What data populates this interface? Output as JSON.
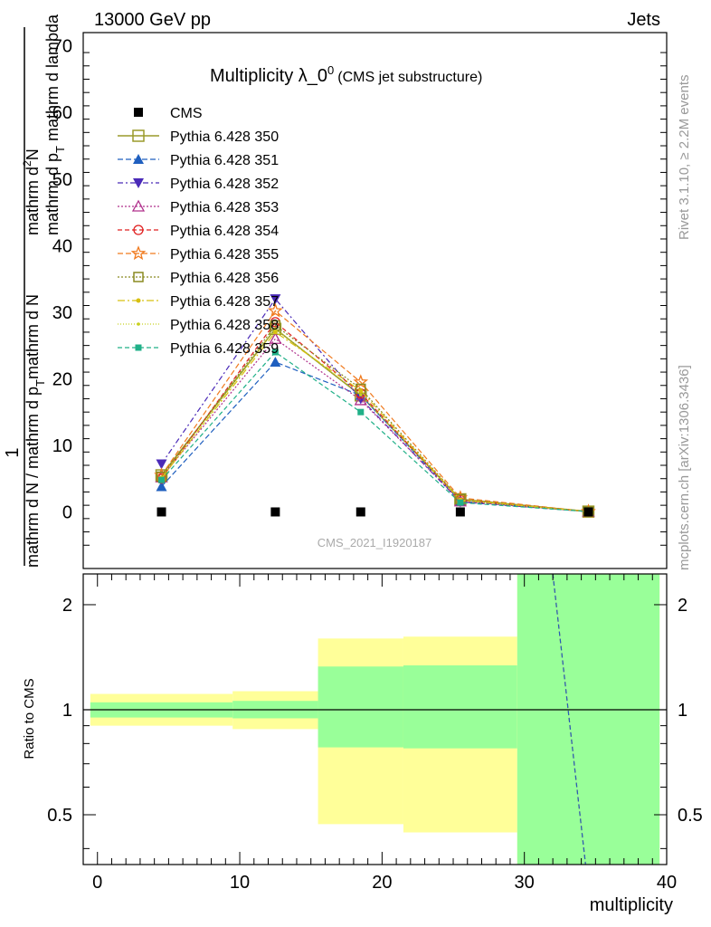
{
  "header": {
    "left": "13000 GeV pp",
    "right": "Jets"
  },
  "side_text": {
    "upper": "Rivet 3.1.10, ≥ 2.2M events",
    "lower": "mcplots.cern.ch [arXiv:1306.3436]"
  },
  "watermark": "CMS_2021_I1920187",
  "chart_data": [
    {
      "type": "line",
      "title": "Multiplicity λ_0",
      "title_sup": "0",
      "subtitle": "(CMS jet substructure)",
      "ylabel_numerator": "1",
      "ylabel_denominator_a": "mathrm d N / mathrm d p",
      "ylabel_denominator_sub": "T",
      "ylabel_denominator_b": "mathrm d N",
      "ylabel_main_a": "mathrm d",
      "ylabel_main_sup": "2",
      "ylabel_main_b": "N",
      "ylabel_lower_a": "mathrm d p",
      "ylabel_lower_sub": "T",
      "ylabel_lower_b": " mathrm d lambda",
      "xlim": [
        -1,
        40
      ],
      "ylim": [
        -8.5,
        72
      ],
      "yticks": [
        0,
        10,
        20,
        30,
        40,
        50,
        60,
        70
      ],
      "grid": false,
      "legend_position": "top-left",
      "x": [
        4.5,
        12.5,
        18.5,
        25.5,
        34.5
      ],
      "series": [
        {
          "name": "CMS",
          "color": "#000000",
          "dash": "none",
          "marker": "square-filled",
          "values": [
            0,
            0,
            0,
            0,
            0
          ],
          "line": false
        },
        {
          "name": "Pythia 6.428 350",
          "color": "#9a9a2a",
          "dash": "solid",
          "marker": "square-open-big",
          "values": [
            5.5,
            27.5,
            17.5,
            1.9,
            0.05
          ]
        },
        {
          "name": "Pythia 6.428 351",
          "color": "#1f5fbf",
          "dash": "6,3",
          "marker": "triangle-up-filled",
          "values": [
            3.8,
            22.5,
            17.5,
            1.6,
            0.05
          ]
        },
        {
          "name": "Pythia 6.428 352",
          "color": "#4a2ab8",
          "dash": "6,3,2,3",
          "marker": "triangle-down-filled",
          "values": [
            7.2,
            32.0,
            17.0,
            1.5,
            0.05
          ]
        },
        {
          "name": "Pythia 6.428 353",
          "color": "#b0308c",
          "dash": "2,2",
          "marker": "triangle-up-open",
          "values": [
            5.2,
            26.0,
            16.8,
            1.6,
            0.05
          ]
        },
        {
          "name": "Pythia 6.428 354",
          "color": "#e02020",
          "dash": "5,3",
          "marker": "circle-open",
          "values": [
            5.0,
            28.5,
            17.8,
            1.8,
            0.05
          ]
        },
        {
          "name": "Pythia 6.428 355",
          "color": "#f07a1e",
          "dash": "6,3",
          "marker": "star-open",
          "values": [
            5.5,
            30.2,
            19.5,
            2.1,
            0.05
          ]
        },
        {
          "name": "Pythia 6.428 356",
          "color": "#8a8a20",
          "dash": "2,2",
          "marker": "square-open",
          "values": [
            5.3,
            28.0,
            18.5,
            1.9,
            0.05
          ]
        },
        {
          "name": "Pythia 6.428 357",
          "color": "#d8c010",
          "dash": "8,3,2,3",
          "marker": "dot",
          "values": [
            5.1,
            27.0,
            18.2,
            1.8,
            0.05
          ]
        },
        {
          "name": "Pythia 6.428 358",
          "color": "#c8d020",
          "dash": "1,2",
          "marker": "dot-small",
          "values": [
            5.0,
            27.5,
            17.6,
            1.7,
            0.05
          ]
        },
        {
          "name": "Pythia 6.428 359",
          "color": "#20b088",
          "dash": "5,3",
          "marker": "square-small",
          "values": [
            4.8,
            24.0,
            15.0,
            1.4,
            0.05
          ]
        }
      ]
    },
    {
      "type": "line",
      "ylabel": "Ratio to CMS",
      "xlabel": "multiplicity",
      "xlim": [
        -1,
        40
      ],
      "xticks": [
        0,
        10,
        20,
        30,
        40
      ],
      "yticks": [
        0.5,
        1,
        2
      ],
      "ylim": [
        0.36,
        2.45
      ],
      "log_y": true,
      "bands": [
        {
          "x0": -0.5,
          "x1": 9.5,
          "green_lo": 0.95,
          "green_hi": 1.05,
          "yellow_lo": 0.9,
          "yellow_hi": 1.11
        },
        {
          "x0": 9.5,
          "x1": 15.5,
          "green_lo": 0.945,
          "green_hi": 1.06,
          "yellow_lo": 0.88,
          "yellow_hi": 1.13
        },
        {
          "x0": 15.5,
          "x1": 21.5,
          "green_lo": 0.78,
          "green_hi": 1.33,
          "yellow_lo": 0.47,
          "yellow_hi": 1.6
        },
        {
          "x0": 21.5,
          "x1": 29.5,
          "green_lo": 0.775,
          "green_hi": 1.34,
          "yellow_lo": 0.445,
          "yellow_hi": 1.62
        },
        {
          "x0": 29.5,
          "x1": 39.5,
          "green_lo": 0.36,
          "green_hi": 2.45,
          "yellow_lo": 0.36,
          "yellow_hi": 2.45
        }
      ],
      "reference": 1,
      "ratio_lines": [
        {
          "color": "#f07a1e",
          "x": [
            32.0,
            34.3
          ],
          "values": [
            2.45,
            0.36
          ]
        },
        {
          "color": "#1f5fbf",
          "x": [
            32.0,
            34.3
          ],
          "values": [
            2.45,
            0.36
          ]
        }
      ]
    }
  ]
}
